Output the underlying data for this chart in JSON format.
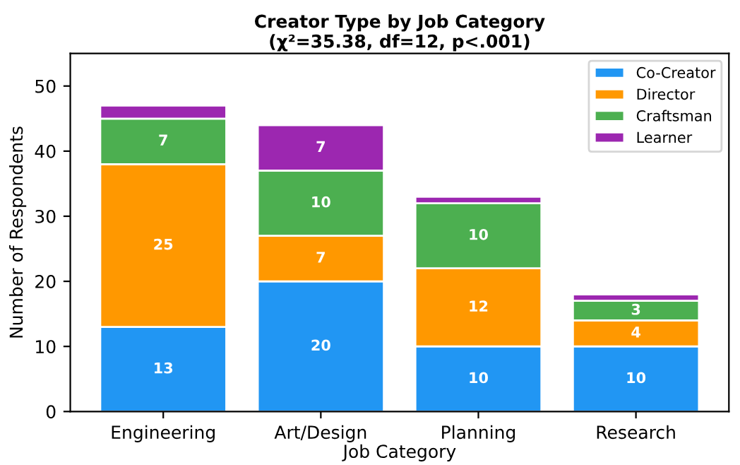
{
  "chart_data": {
    "type": "bar",
    "stacked": true,
    "title": "Creator Type by Job Category\n(χ²=35.38, df=12, p<.001)",
    "xlabel": "Job Category",
    "ylabel": "Number of Respondents",
    "categories": [
      "Engineering",
      "Art/Design",
      "Planning",
      "Research"
    ],
    "series": [
      {
        "name": "Co-Creator",
        "color": "#2196f3",
        "values": [
          13,
          20,
          10,
          10
        ],
        "value_labels": [
          "13",
          "20",
          "10",
          "10"
        ]
      },
      {
        "name": "Director",
        "color": "#ff9800",
        "values": [
          25,
          7,
          12,
          4
        ],
        "value_labels": [
          "25",
          "7",
          "12",
          "4"
        ]
      },
      {
        "name": "Craftsman",
        "color": "#4caf50",
        "values": [
          7,
          10,
          10,
          3
        ],
        "value_labels": [
          "7",
          "10",
          "10",
          "3"
        ]
      },
      {
        "name": "Learner",
        "color": "#9c27b0",
        "values": [
          2,
          7,
          1,
          1
        ],
        "value_labels": [
          null,
          "7",
          null,
          null
        ]
      }
    ],
    "ylim": [
      0,
      55
    ],
    "yticks": [
      0,
      10,
      20,
      30,
      40,
      50
    ],
    "legend": "top right",
    "grid": false
  }
}
